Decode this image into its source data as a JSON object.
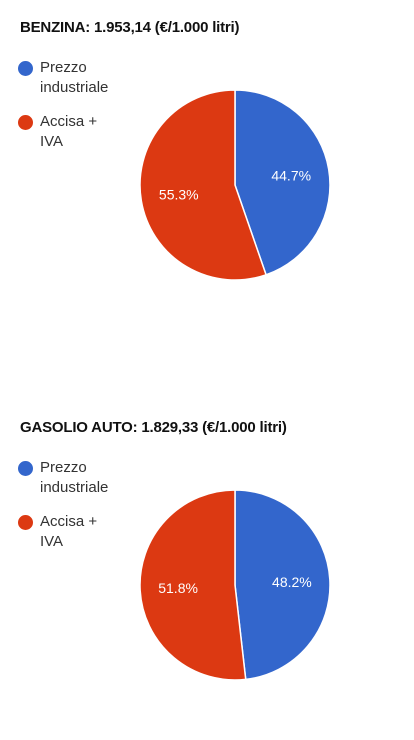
{
  "chart_data": [
    {
      "type": "pie",
      "title": "BENZINA: 1.953,14 (€/1.000 litri)",
      "categories": [
        "Prezzo industriale",
        "Accisa + IVA"
      ],
      "values": [
        44.7,
        55.3
      ],
      "value_labels": [
        "44.7%",
        "55.3%"
      ],
      "colors": [
        "#3366cc",
        "#dc3912"
      ],
      "legend": [
        {
          "line1": "Prezzo",
          "line2": "industriale",
          "color": "#3366cc"
        },
        {
          "line1": "Accisa +",
          "line2": "IVA",
          "color": "#dc3912"
        }
      ],
      "legend_position": "left"
    },
    {
      "type": "pie",
      "title": "GASOLIO AUTO: 1.829,33 (€/1.000 litri)",
      "categories": [
        "Prezzo industriale",
        "Accisa + IVA"
      ],
      "values": [
        48.2,
        51.8
      ],
      "value_labels": [
        "48.2%",
        "51.8%"
      ],
      "colors": [
        "#3366cc",
        "#dc3912"
      ],
      "legend": [
        {
          "line1": "Prezzo",
          "line2": "industriale",
          "color": "#3366cc"
        },
        {
          "line1": "Accisa +",
          "line2": "IVA",
          "color": "#dc3912"
        }
      ],
      "legend_position": "left"
    }
  ]
}
